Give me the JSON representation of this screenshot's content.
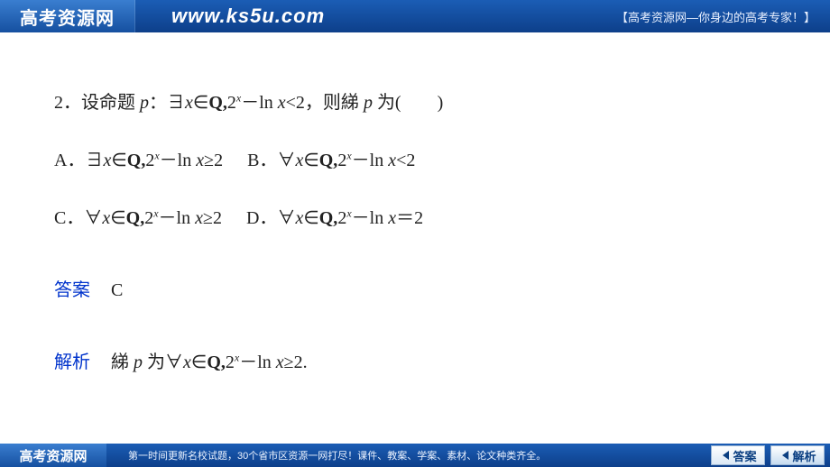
{
  "header": {
    "logo_text": "高考资源网",
    "url": "www.ks5u.com",
    "slogan": "【高考资源网—你身边的高考专家！】"
  },
  "question": {
    "number": "2．",
    "stem_prefix": "设命题 ",
    "p_var": "p",
    "stem_colon": "：∃",
    "x_var": "x",
    "in_sym": "∈",
    "set_Q": "Q,",
    "two": "2",
    "exp_x": "x",
    "minus": "－",
    "ln": "ln ",
    "lt2": "<2，则綈 ",
    "p_var2": "p",
    "tail": " 为(　　)"
  },
  "options": {
    "A_label": "A．",
    "A_quant": "∃",
    "A_rel": "≥2",
    "B_label": "B．",
    "B_quant": "∀",
    "B_rel": "<2",
    "C_label": "C．",
    "C_quant": "∀",
    "C_rel": "≥2",
    "D_label": "D．",
    "D_quant": "∀",
    "D_rel": "＝2"
  },
  "answer": {
    "label": "答案",
    "value": "C"
  },
  "explain": {
    "label": "解析",
    "prefix": "綈 ",
    "p": "p",
    "mid": " 为∀",
    "rel": "≥2."
  },
  "footer": {
    "logo_text": "高考资源网",
    "text": "第一时间更新名校试题，30个省市区资源一网打尽！课件、教案、学案、素材、论文种类齐全。",
    "btn_answer": "答案",
    "btn_explain": "解析"
  },
  "style": {
    "header_bg_top": "#1b5db5",
    "header_bg_bottom": "#0d3f8a",
    "answer_color": "#0033cc",
    "text_color": "#222222",
    "btn_border": "#9ab6d6",
    "btn_text": "#0b3f82"
  }
}
